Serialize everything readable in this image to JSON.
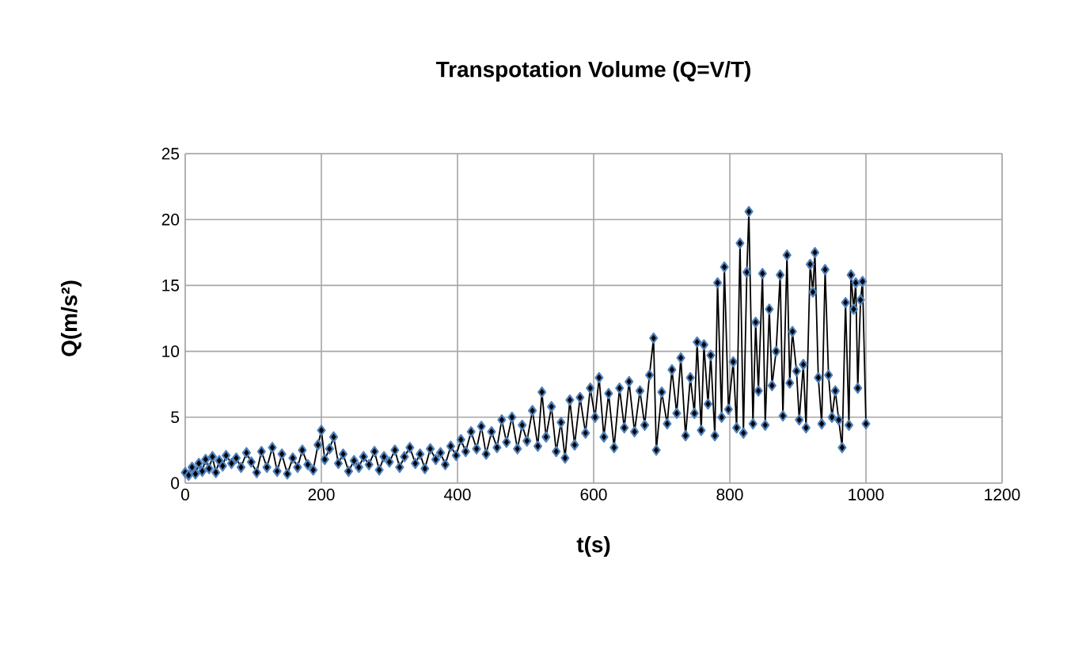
{
  "chart_data": {
    "type": "line",
    "title": "Transpotation Volume (Q=V/T)",
    "xlabel": "t(s)",
    "ylabel": "Q(m/s²)",
    "xlim": [
      0,
      1200
    ],
    "xticks": [
      0,
      200,
      400,
      600,
      800,
      1000,
      1200
    ],
    "ylim": [
      0,
      25
    ],
    "yticks": [
      0,
      5,
      10,
      15,
      20,
      25
    ],
    "grid": true,
    "marker": "diamond",
    "line_style": "solid",
    "series": [
      {
        "color": "#4f81bd",
        "x": [
          0,
          5,
          10,
          15,
          20,
          25,
          30,
          35,
          40,
          45,
          50,
          55,
          60,
          68,
          75,
          82,
          90,
          97,
          105,
          112,
          120,
          128,
          135,
          142,
          150,
          158,
          165,
          172,
          180,
          188,
          195,
          200,
          205,
          212,
          218,
          225,
          232,
          240,
          248,
          255,
          262,
          270,
          278,
          285,
          292,
          300,
          308,
          315,
          322,
          330,
          338,
          345,
          352,
          360,
          368,
          375,
          382,
          390,
          398,
          405,
          412,
          420,
          428,
          435,
          442,
          450,
          458,
          465,
          472,
          480,
          488,
          495,
          502,
          510,
          518,
          524,
          530,
          538,
          545,
          552,
          558,
          565,
          572,
          580,
          588,
          595,
          602,
          608,
          615,
          622,
          630,
          638,
          645,
          652,
          660,
          668,
          675,
          682,
          688,
          692,
          700,
          708,
          715,
          722,
          728,
          735,
          742,
          748,
          752,
          758,
          762,
          768,
          772,
          778,
          782,
          788,
          792,
          798,
          805,
          810,
          815,
          820,
          825,
          828,
          834,
          838,
          842,
          848,
          852,
          858,
          862,
          868,
          874,
          878,
          884,
          888,
          892,
          898,
          902,
          908,
          912,
          918,
          922,
          925,
          930,
          935,
          940,
          945,
          950,
          955,
          960,
          965,
          970,
          975,
          978,
          982,
          985,
          988,
          992,
          995,
          1000
        ],
        "values": [
          0.8,
          0.6,
          1.2,
          0.7,
          1.5,
          0.9,
          1.8,
          1.1,
          2.0,
          0.8,
          1.7,
          1.3,
          2.1,
          1.5,
          1.9,
          1.2,
          2.3,
          1.6,
          0.8,
          2.4,
          1.2,
          2.7,
          0.9,
          2.2,
          0.7,
          1.9,
          1.2,
          2.5,
          1.4,
          1.0,
          2.9,
          4.0,
          1.8,
          2.6,
          3.5,
          1.5,
          2.2,
          0.9,
          1.7,
          1.2,
          2.0,
          1.4,
          2.4,
          1.0,
          2.0,
          1.6,
          2.5,
          1.2,
          2.0,
          2.7,
          1.5,
          2.2,
          1.1,
          2.6,
          1.8,
          2.3,
          1.4,
          2.8,
          2.1,
          3.3,
          2.4,
          3.9,
          2.6,
          4.3,
          2.2,
          3.9,
          2.7,
          4.8,
          3.1,
          5.0,
          2.6,
          4.4,
          3.2,
          5.5,
          2.8,
          6.9,
          3.5,
          5.8,
          2.4,
          4.6,
          1.9,
          6.3,
          2.9,
          6.5,
          3.8,
          7.2,
          5.0,
          8.0,
          3.5,
          6.8,
          2.7,
          7.2,
          4.2,
          7.7,
          3.9,
          7.0,
          4.4,
          8.2,
          11.0,
          2.5,
          6.9,
          4.5,
          8.6,
          5.3,
          9.5,
          3.6,
          8.0,
          5.3,
          10.7,
          4.0,
          10.5,
          6.0,
          9.7,
          3.6,
          15.2,
          5.0,
          16.4,
          5.6,
          9.2,
          4.2,
          18.2,
          3.8,
          16.0,
          20.6,
          4.5,
          12.2,
          7.0,
          15.9,
          4.4,
          13.2,
          7.4,
          10.0,
          15.8,
          5.1,
          17.3,
          7.6,
          11.5,
          8.5,
          4.8,
          9.0,
          4.2,
          16.6,
          14.5,
          17.5,
          8.0,
          4.5,
          16.2,
          8.2,
          5.0,
          7.0,
          4.8,
          2.7,
          13.7,
          4.4,
          15.8,
          13.2,
          15.2,
          7.2,
          13.9,
          15.3,
          4.5
        ]
      }
    ]
  }
}
